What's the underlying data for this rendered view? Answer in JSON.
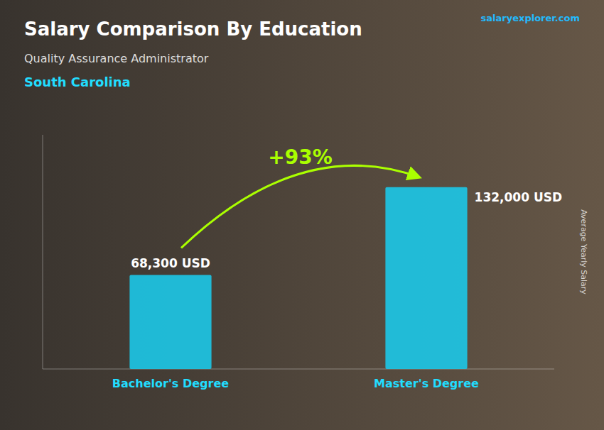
{
  "chart_data": {
    "type": "bar",
    "title": "Salary Comparison By Education",
    "subtitle": "Quality Assurance Administrator",
    "annotations": [
      "South Carolina",
      "+93%",
      "salaryexplorer.com"
    ],
    "ylabel": "Average Yearly Salary",
    "categories": [
      "Bachelor's Degree",
      "Master's Degree"
    ],
    "values": [
      68300,
      132000
    ],
    "value_labels": [
      "68,300 USD",
      "132,000 USD"
    ],
    "data_labels": true,
    "color": "#1CC8E8",
    "ylim": [
      0,
      170000
    ],
    "tick_labels": false
  }
}
